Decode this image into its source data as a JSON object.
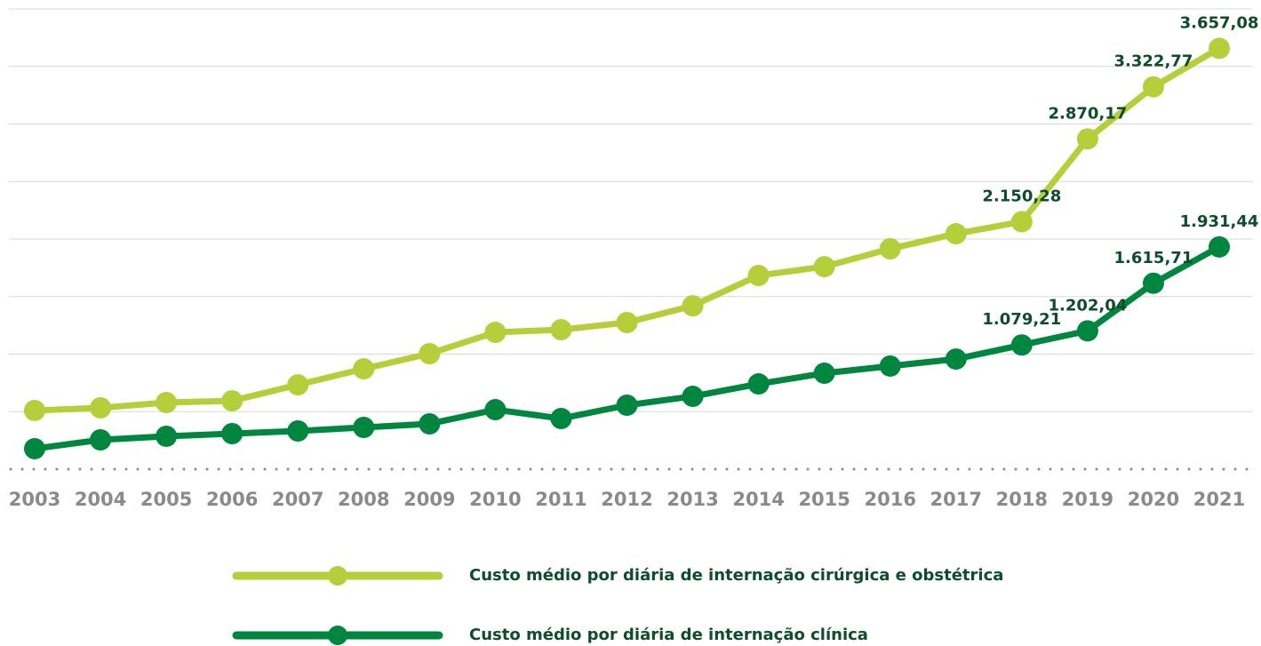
{
  "chart_data": {
    "type": "line",
    "categories": [
      "2003",
      "2004",
      "2005",
      "2006",
      "2007",
      "2008",
      "2009",
      "2010",
      "2011",
      "2012",
      "2013",
      "2014",
      "2015",
      "2016",
      "2017",
      "2018",
      "2019",
      "2020",
      "2021"
    ],
    "series": [
      {
        "name": "Custo médio por diária de internação cirúrgica e obstétrica",
        "color": "#b5cf3a",
        "values": [
          510,
          533,
          579,
          594,
          733,
          872,
          1004,
          1189,
          1212,
          1274,
          1420,
          1683,
          1760,
          1915,
          2046,
          2150.28,
          2870.17,
          3322.77,
          3657.08
        ],
        "value_labels": [
          null,
          null,
          null,
          null,
          null,
          null,
          null,
          null,
          null,
          null,
          null,
          null,
          null,
          null,
          null,
          "2.150,28",
          "2.870,17",
          "3.322,77",
          "3.657,08"
        ]
      },
      {
        "name": "Custo médio por diária de internação clínica",
        "color": "#00863f",
        "values": [
          178,
          255,
          286,
          309,
          332,
          363,
          394,
          517,
          440,
          556,
          633,
          741,
          834,
          896,
          957,
          1079.21,
          1202.04,
          1615.71,
          1931.44
        ],
        "value_labels": [
          null,
          null,
          null,
          null,
          null,
          null,
          null,
          null,
          null,
          null,
          null,
          null,
          null,
          null,
          null,
          "1.079,21",
          "1.202,04",
          "1.615,71",
          "1.931,44"
        ]
      }
    ],
    "ylim": [
      0,
      4000
    ],
    "yticks": [
      500,
      1000,
      1500,
      2000,
      2500,
      3000,
      3500,
      4000
    ],
    "ytick_labels": false,
    "grid": true,
    "legend": "bottom"
  }
}
